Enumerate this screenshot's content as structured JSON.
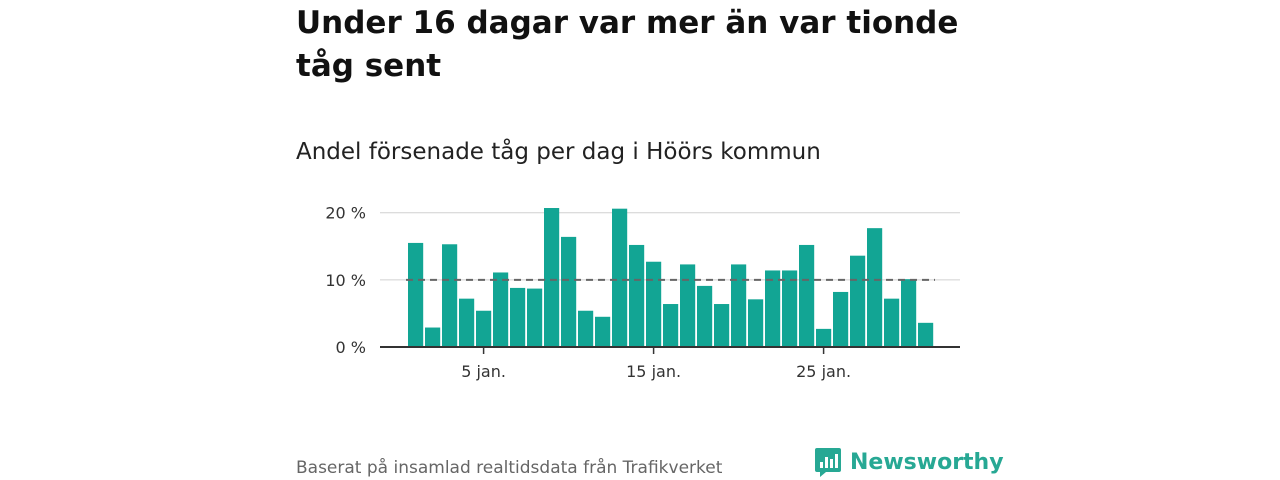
{
  "title": "Under 16 dagar var mer än var tionde tåg sent",
  "subtitle": "Andel försenade tåg per dag i Höörs kommun",
  "footer": "Baserat på insamlad realtidsdata från Trafikverket",
  "brand": {
    "name": "Newsworthy",
    "icon": "newsworthy-logo-icon"
  },
  "colors": {
    "bar": "#12a594",
    "reference_line": "#666666",
    "grid": "#d0d0d0",
    "axis": "#333333"
  },
  "chart_data": {
    "type": "bar",
    "x": [
      "1 jan.",
      "2 jan.",
      "3 jan.",
      "4 jan.",
      "5 jan.",
      "6 jan.",
      "7 jan.",
      "8 jan.",
      "9 jan.",
      "10 jan.",
      "11 jan.",
      "12 jan.",
      "13 jan.",
      "14 jan.",
      "15 jan.",
      "16 jan.",
      "17 jan.",
      "18 jan.",
      "19 jan.",
      "20 jan.",
      "21 jan.",
      "22 jan.",
      "23 jan.",
      "24 jan.",
      "25 jan.",
      "26 jan.",
      "27 jan.",
      "28 jan.",
      "29 jan.",
      "30 jan.",
      "31 jan."
    ],
    "values": [
      15.5,
      2.9,
      15.3,
      7.2,
      5.4,
      11.1,
      8.8,
      8.7,
      20.7,
      16.4,
      5.4,
      4.5,
      20.6,
      15.2,
      12.7,
      6.4,
      12.3,
      9.1,
      6.4,
      12.3,
      7.1,
      11.4,
      11.4,
      15.2,
      2.7,
      8.2,
      13.6,
      17.7,
      7.2,
      10.1,
      3.6
    ],
    "reference_line": 10,
    "ylim": [
      0,
      21
    ],
    "yticks": [
      0,
      10,
      20
    ],
    "ytick_labels": [
      "0 %",
      "10 %",
      "20 %"
    ],
    "xticks": [
      "5 jan.",
      "15 jan.",
      "25 jan."
    ],
    "xtick_days": [
      5,
      15,
      25
    ],
    "grid": true,
    "legend": "none"
  }
}
